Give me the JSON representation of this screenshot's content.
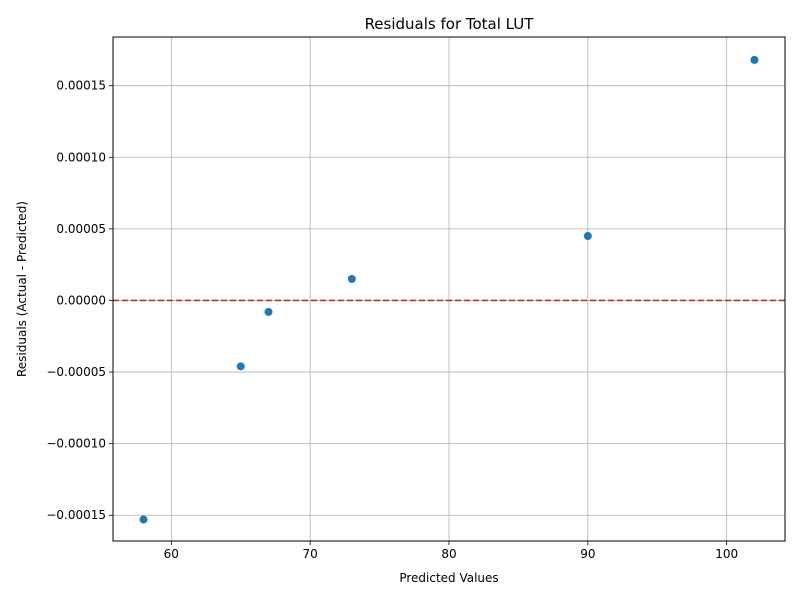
{
  "chart_data": {
    "type": "scatter",
    "title": "Residuals for Total LUT",
    "xlabel": "Predicted Values",
    "ylabel": "Residuals (Actual - Predicted)",
    "xlim": [
      55.8,
      104.2
    ],
    "ylim": [
      -0.000168,
      0.000184
    ],
    "grid": true,
    "x_ticks": [
      60,
      70,
      80,
      90,
      100
    ],
    "x_tick_labels": [
      "60",
      "70",
      "80",
      "90",
      "100"
    ],
    "y_ticks": [
      -0.00015,
      -0.0001,
      -5e-05,
      0,
      5e-05,
      0.0001,
      0.00015
    ],
    "y_tick_labels": [
      "−0.00015",
      "−0.00010",
      "−0.00005",
      "0.00000",
      "0.00005",
      "0.00010",
      "0.00015"
    ],
    "reference_line": {
      "y": 0,
      "style": "dashed",
      "color": "#d62728"
    },
    "point_color": "#1f77b4",
    "points": [
      {
        "x": 58,
        "y": -0.000153
      },
      {
        "x": 65,
        "y": -4.6e-05
      },
      {
        "x": 67,
        "y": -8e-06
      },
      {
        "x": 73,
        "y": 1.5e-05
      },
      {
        "x": 90,
        "y": 4.5e-05
      },
      {
        "x": 102,
        "y": 0.000168
      }
    ]
  }
}
